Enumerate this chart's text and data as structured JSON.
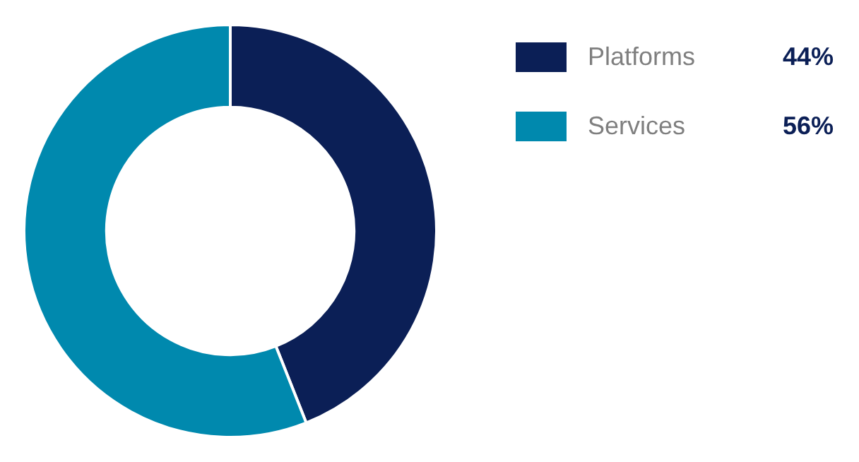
{
  "chart_data": {
    "type": "donut",
    "categories": [
      "Platforms",
      "Services"
    ],
    "values": [
      44,
      56
    ],
    "colors": [
      "#0b1f56",
      "#0089ae"
    ],
    "value_labels": [
      "44%",
      "56%"
    ],
    "legend": "top right"
  }
}
